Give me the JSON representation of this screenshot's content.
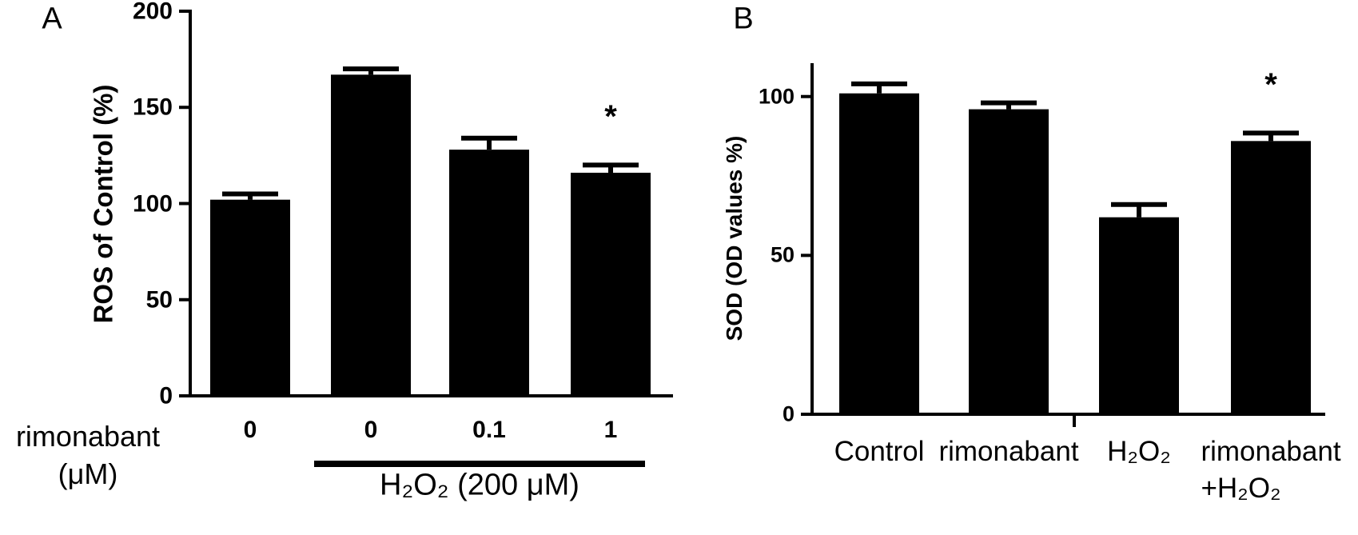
{
  "chart_data": [
    {
      "type": "bar",
      "panel_label": "A",
      "ylabel": "ROS of Control (%)",
      "xlabel": "rimonabant\n(μM)",
      "categories": [
        "0",
        "0",
        "0.1",
        "1"
      ],
      "values": [
        102,
        167,
        128,
        116
      ],
      "errors": [
        3,
        3,
        6,
        4
      ],
      "color": "#000000",
      "ylim": [
        0,
        200
      ],
      "yticks": [
        0,
        50,
        100,
        150,
        200
      ],
      "group_label": "H₂O₂ (200 μM)",
      "annotations": [
        {
          "text": "*",
          "category": "1"
        }
      ]
    },
    {
      "type": "bar",
      "panel_label": "B",
      "ylabel": "SOD (OD values %)",
      "categories": [
        "Control",
        "rimonabant",
        "H₂O₂",
        "rimonabant\n+H₂O₂"
      ],
      "values": [
        101,
        96,
        62,
        86
      ],
      "errors": [
        3,
        2,
        4,
        2.5
      ],
      "color": "#000000",
      "ylim": [
        0,
        110
      ],
      "yticks": [
        0,
        50,
        100
      ],
      "annotations": [
        {
          "text": "*",
          "category": "rimonabant\n+H₂O₂"
        }
      ]
    }
  ]
}
